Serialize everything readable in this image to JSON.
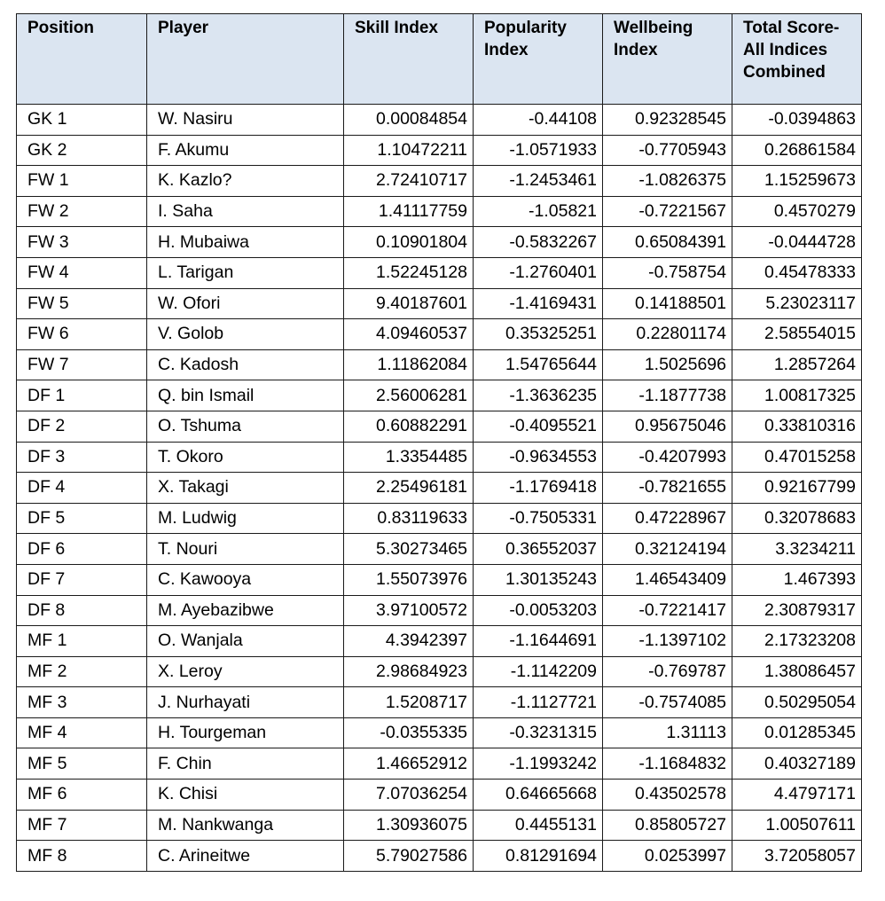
{
  "table": {
    "headers": [
      "Position",
      "Player",
      "Skill Index",
      "Popularity Index",
      "Wellbeing Index",
      "Total Score- All Indices Combined"
    ],
    "rows": [
      [
        "GK 1",
        "W. Nasiru",
        "0.00084854",
        "-0.44108",
        "0.92328545",
        "-0.0394863"
      ],
      [
        "GK 2",
        "F. Akumu",
        "1.10472211",
        "-1.0571933",
        "-0.7705943",
        "0.26861584"
      ],
      [
        "FW 1",
        "K. Kazlo?",
        "2.72410717",
        "-1.2453461",
        "-1.0826375",
        "1.15259673"
      ],
      [
        "FW 2",
        "I. Saha",
        "1.41117759",
        "-1.05821",
        "-0.7221567",
        "0.4570279"
      ],
      [
        "FW 3",
        "H. Mubaiwa",
        "0.10901804",
        "-0.5832267",
        "0.65084391",
        "-0.0444728"
      ],
      [
        "FW 4",
        "L. Tarigan",
        "1.52245128",
        "-1.2760401",
        "-0.758754",
        "0.45478333"
      ],
      [
        "FW 5",
        "W. Ofori",
        "9.40187601",
        "-1.4169431",
        "0.14188501",
        "5.23023117"
      ],
      [
        "FW 6",
        "V. Golob",
        "4.09460537",
        "0.35325251",
        "0.22801174",
        "2.58554015"
      ],
      [
        "FW 7",
        "C. Kadosh",
        "1.11862084",
        "1.54765644",
        "1.5025696",
        "1.2857264"
      ],
      [
        "DF 1",
        "Q. bin Ismail",
        "2.56006281",
        "-1.3636235",
        "-1.1877738",
        "1.00817325"
      ],
      [
        "DF 2",
        "O. Tshuma",
        "0.60882291",
        "-0.4095521",
        "0.95675046",
        "0.33810316"
      ],
      [
        "DF 3",
        "T. Okoro",
        "1.3354485",
        "-0.9634553",
        "-0.4207993",
        "0.47015258"
      ],
      [
        "DF 4",
        "X. Takagi",
        "2.25496181",
        "-1.1769418",
        "-0.7821655",
        "0.92167799"
      ],
      [
        "DF 5",
        "M. Ludwig",
        "0.83119633",
        "-0.7505331",
        "0.47228967",
        "0.32078683"
      ],
      [
        "DF 6",
        "T. Nouri",
        "5.30273465",
        "0.36552037",
        "0.32124194",
        "3.3234211"
      ],
      [
        "DF 7",
        "C. Kawooya",
        "1.55073976",
        "1.30135243",
        "1.46543409",
        "1.467393"
      ],
      [
        "DF 8",
        "M. Ayebazibwe",
        "3.97100572",
        "-0.0053203",
        "-0.7221417",
        "2.30879317"
      ],
      [
        "MF 1",
        "O. Wanjala",
        "4.3942397",
        "-1.1644691",
        "-1.1397102",
        "2.17323208"
      ],
      [
        "MF 2",
        "X. Leroy",
        "2.98684923",
        "-1.1142209",
        "-0.769787",
        "1.38086457"
      ],
      [
        "MF 3",
        "J. Nurhayati",
        "1.5208717",
        "-1.1127721",
        "-0.7574085",
        "0.50295054"
      ],
      [
        "MF 4",
        "H. Tourgeman",
        "-0.0355335",
        "-0.3231315",
        "1.31113",
        "0.01285345"
      ],
      [
        "MF 5",
        "F. Chin",
        "1.46652912",
        "-1.1993242",
        "-1.1684832",
        "0.40327189"
      ],
      [
        "MF 6",
        "K. Chisi",
        "7.07036254",
        "0.64665668",
        "0.43502578",
        "4.4797171"
      ],
      [
        "MF 7",
        "M. Nankwanga",
        "1.30936075",
        "0.4455131",
        "0.85805727",
        "1.00507611"
      ],
      [
        "MF 8",
        "C. Arineitwe",
        "5.79027586",
        "0.81291694",
        "0.0253997",
        "3.72058057"
      ]
    ]
  },
  "colors": {
    "header_background": "#dbe5f1",
    "border": "#1a1a1a",
    "text": "#000000"
  }
}
